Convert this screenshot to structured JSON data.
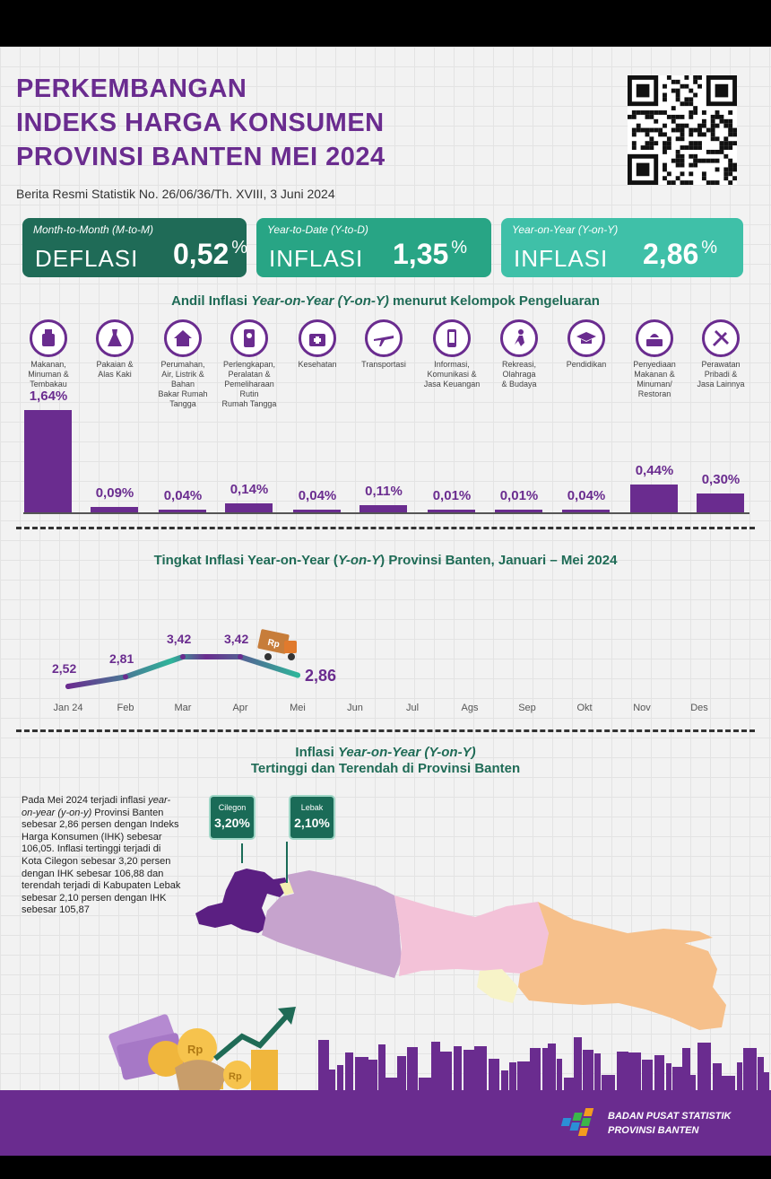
{
  "header": {
    "title_line1": "PERKEMBANGAN",
    "title_line2": "INDEKS HARGA KONSUMEN",
    "title_line3": "PROVINSI BANTEN MEI 2024",
    "subtitle": "Berita Resmi Statistik No. 26/06/36/Th. XVIII, 3 Juni 2024"
  },
  "headline": {
    "mtm": {
      "label": "Month-to-Month (M-to-M)",
      "kind": "DEFLASI",
      "value": "0,52",
      "unit": "%"
    },
    "ytd": {
      "label": "Year-to-Date (Y-to-D)",
      "kind": "INFLASI",
      "value": "1,35",
      "unit": "%"
    },
    "yoy": {
      "label": "Year-on-Year (Y-on-Y)",
      "kind": "INFLASI",
      "value": "2,86",
      "unit": "%"
    }
  },
  "chart_data": [
    {
      "type": "bar",
      "title_pre": "Andil Inflasi ",
      "title_italic": "Year-on-Year (Y-on-Y)",
      "title_post": " menurut Kelompok Pengeluaran",
      "categories": [
        "Makanan,\nMinuman &\nTembakau",
        "Pakaian &\nAlas Kaki",
        "Perumahan,\nAir, Listrik &\nBahan\nBakar Rumah\nTangga",
        "Perlengkapan,\nPeralatan &\nPemeliharaan\nRutin\nRumah Tangga",
        "Kesehatan",
        "Transportasi",
        "Informasi,\nKomunikasi &\nJasa Keuangan",
        "Rekreasi,\nOlahraga\n& Budaya",
        "Pendidikan",
        "Penyediaan\nMakanan &\nMinuman/\nRestoran",
        "Perawatan\nPribadi &\nJasa Lainnya"
      ],
      "icons": [
        "food-icon",
        "dress-icon",
        "house-icon",
        "appliance-icon",
        "medical-kit-icon",
        "airplane-icon",
        "smartphone-icon",
        "sports-icon",
        "graduation-cap-icon",
        "restaurant-icon",
        "tools-icon"
      ],
      "values": [
        1.64,
        0.09,
        0.04,
        0.14,
        0.04,
        0.11,
        0.01,
        0.01,
        0.04,
        0.44,
        0.3
      ],
      "labels": [
        "1,64%",
        "0,09%",
        "0,04%",
        "0,14%",
        "0,04%",
        "0,11%",
        "0,01%",
        "0,01%",
        "0,04%",
        "0,44%",
        "0,30%"
      ],
      "colors": [
        "#6a2c8f",
        "#6a2c8f",
        "#6a2c8f",
        "#6a2c8f",
        "#6a2c8f",
        "#6a2c8f",
        "#6a2c8f",
        "#6a2c8f",
        "#6a2c8f",
        "#6a2c8f",
        "#6a2c8f"
      ]
    },
    {
      "type": "line",
      "title_pre": "Tingkat Inflasi Year-on-Year (",
      "title_italic": "Y-on-Y",
      "title_post": ") Provinsi Banten, Januari – Mei  2024",
      "categories": [
        "Jan 24",
        "Feb",
        "Mar",
        "Apr",
        "Mei",
        "Jun",
        "Jul",
        "Ags",
        "Sep",
        "Okt",
        "Nov",
        "Des"
      ],
      "values": [
        2.52,
        2.81,
        3.42,
        3.42,
        2.86
      ],
      "labels": [
        "2,52",
        "2,81",
        "3,42",
        "3,42",
        "2,86"
      ],
      "gradient": [
        "#6a2c8f",
        "#2fb59a"
      ]
    }
  ],
  "map": {
    "title_line1_pre": "Inflasi ",
    "title_line1_italic": "Year-on-Year (Y-on-Y)",
    "title_line2": "Tertinggi dan Terendah di Provinsi Banten",
    "highest": {
      "region": "Cilegon",
      "value": "3,20%"
    },
    "lowest": {
      "region": "Lebak",
      "value": "2,10%"
    },
    "para_1": "Pada Mei 2024 terjadi inflasi ",
    "para_2": "year-on-year (y-on-y)",
    "para_3": " Provinsi Banten sebesar 2,86 persen dengan Indeks Harga Konsumen (IHK) sebesar 106,05. Inflasi tertinggi terjadi di Kota Cilegon sebesar 3,20 persen dengan IHK sebesar 106,88 dan terendah terjadi di Kabupaten Lebak sebesar 2,10 persen dengan IHK sebesar 105,87",
    "para_4": "",
    "para_5": ""
  },
  "footer": {
    "org_line1": "BADAN PUSAT STATISTIK",
    "org_line2": "PROVINSI BANTEN"
  }
}
